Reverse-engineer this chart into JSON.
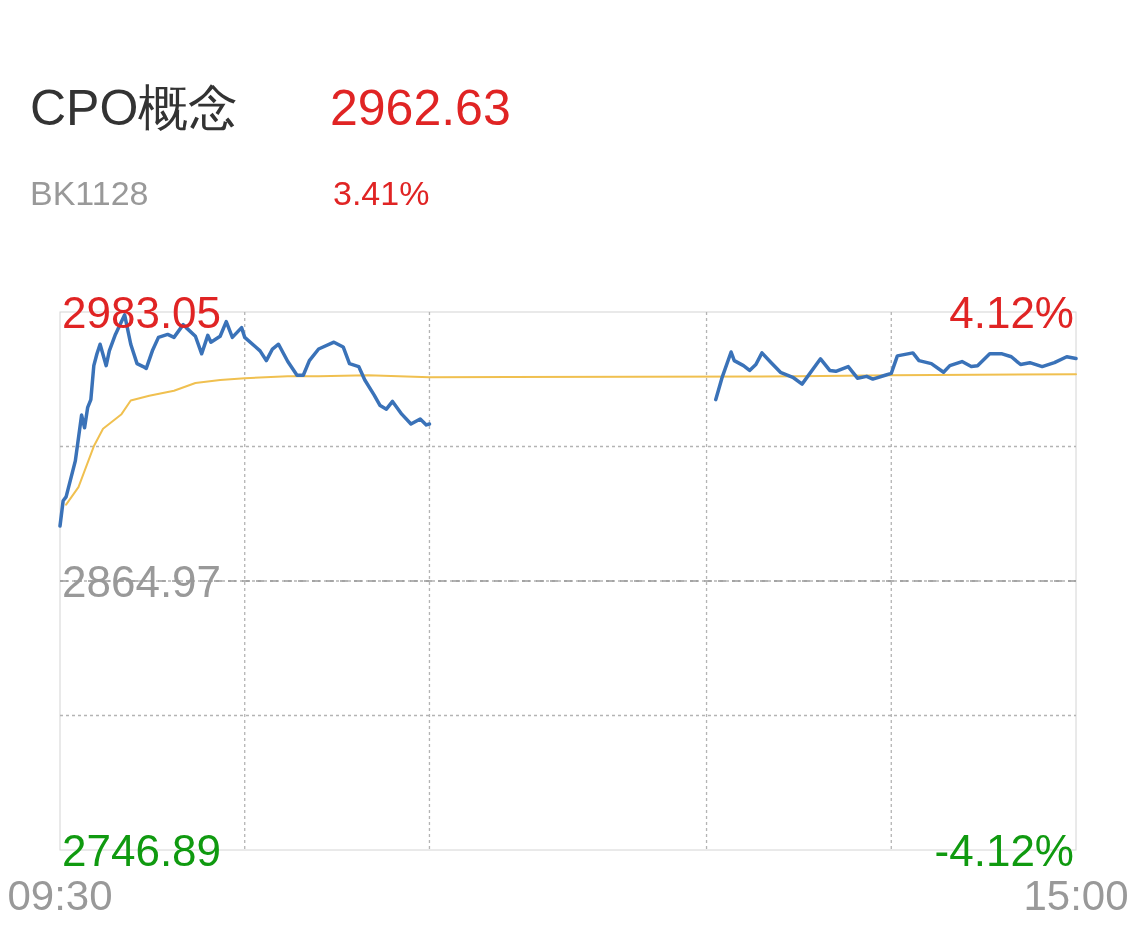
{
  "chart_data": {
    "type": "line",
    "title": "CPO概念",
    "annotations": [
      "2962.63",
      "BK1128",
      "3.41%"
    ],
    "xlim": [
      9.5,
      15
    ],
    "xticks": [
      {
        "value": 9.5,
        "label": "09:30"
      },
      {
        "value": 10.5,
        "label": null
      },
      {
        "value": 11.5,
        "label": null
      },
      {
        "value": 13,
        "label": null
      },
      {
        "value": 14,
        "label": null
      },
      {
        "value": 15,
        "label": "15:00"
      }
    ],
    "ylim": [
      2746.89,
      2983.05
    ],
    "yticks": [
      2746.89,
      {
        "value": 2805.93,
        "label": null
      },
      2864.97,
      {
        "value": 2924.01,
        "label": null
      },
      2983.05
    ],
    "y2lim": [
      -4.12,
      4.12
    ],
    "y2ticks": [
      {
        "value": -4.12,
        "label": "-4.12%"
      },
      {
        "value": 4.12,
        "label": "4.12%"
      }
    ],
    "grid": true,
    "ref_lines": [
      {
        "axis": "y",
        "value": 2864.97,
        "color": "#999999",
        "line_style": "dashed"
      }
    ],
    "series": [
      {
        "color": "#3a72b8",
        "x": [
          9.5,
          9.517,
          9.533,
          9.583,
          9.617,
          9.633,
          9.65,
          9.667,
          9.683,
          9.7,
          9.717,
          9.75,
          9.767,
          9.8,
          9.85,
          9.883,
          9.917,
          9.95,
          9.967,
          10.0,
          10.033,
          10.083,
          10.117,
          10.167,
          10.183,
          10.233,
          10.267,
          10.3,
          10.317,
          10.367,
          10.4,
          10.433,
          10.483,
          10.5,
          10.583,
          10.617,
          10.65,
          10.683,
          10.733,
          10.783,
          10.817,
          10.85,
          10.9,
          10.983,
          11.033,
          11.067,
          11.117,
          11.15,
          11.2,
          11.233,
          11.267,
          11.3,
          11.35,
          11.4,
          11.45,
          11.483,
          11.5,
          12.25,
          13.05,
          13.083,
          13.133,
          13.15,
          13.2,
          13.233,
          13.267,
          13.3,
          13.35,
          13.4,
          13.467,
          13.517,
          13.617,
          13.667,
          13.7,
          13.767,
          13.817,
          13.867,
          13.9,
          13.967,
          14.0,
          14.033,
          14.117,
          14.15,
          14.217,
          14.283,
          14.317,
          14.383,
          14.433,
          14.467,
          14.533,
          14.6,
          14.65,
          14.7,
          14.75,
          14.817,
          14.883,
          14.95,
          15.0
        ],
        "values": [
          2889.1,
          2900.2,
          2901.9,
          2917.7,
          2937.8,
          2932.2,
          2941.2,
          2944.6,
          2959.5,
          2964.7,
          2968.9,
          2959.5,
          2966.0,
          2973.2,
          2981.8,
          2968.9,
          2960.4,
          2959.1,
          2958.3,
          2966.0,
          2971.9,
          2973.2,
          2971.9,
          2977.5,
          2976.2,
          2972.4,
          2964.7,
          2972.8,
          2969.8,
          2972.4,
          2978.8,
          2971.9,
          2976.2,
          2971.9,
          2966.0,
          2961.7,
          2966.8,
          2968.9,
          2961.3,
          2955.3,
          2955.3,
          2961.7,
          2966.8,
          2969.8,
          2967.7,
          2960.4,
          2959.1,
          2953.2,
          2946.7,
          2942.0,
          2940.4,
          2943.8,
          2938.2,
          2933.9,
          2936.1,
          2933.5,
          2933.9,
          null,
          2944.6,
          2954.0,
          2965.5,
          2961.7,
          2959.5,
          2957.4,
          2960.0,
          2965.1,
          2960.8,
          2956.6,
          2954.4,
          2951.4,
          2962.5,
          2957.4,
          2957.0,
          2959.1,
          2954.0,
          2954.8,
          2953.6,
          2955.3,
          2956.1,
          2963.8,
          2965.1,
          2961.7,
          2960.4,
          2956.6,
          2959.5,
          2961.3,
          2959.1,
          2959.5,
          2964.7,
          2964.7,
          2963.4,
          2960.0,
          2960.8,
          2959.1,
          2960.8,
          2963.4,
          2962.6
        ]
      },
      {
        "color": "#f0c050",
        "x": [
          9.533,
          9.6,
          9.683,
          9.733,
          9.833,
          9.883,
          9.983,
          10.117,
          10.233,
          10.367,
          10.5,
          10.733,
          10.9,
          11.167,
          11.5,
          13.5,
          14.0,
          15.0
        ],
        "values": [
          2898.5,
          2906.2,
          2924.1,
          2931.8,
          2938.2,
          2944.2,
          2946.3,
          2948.5,
          2951.9,
          2953.2,
          2954.0,
          2954.8,
          2954.8,
          2955.3,
          2954.4,
          2954.8,
          2955.3,
          2955.7
        ]
      }
    ]
  }
}
